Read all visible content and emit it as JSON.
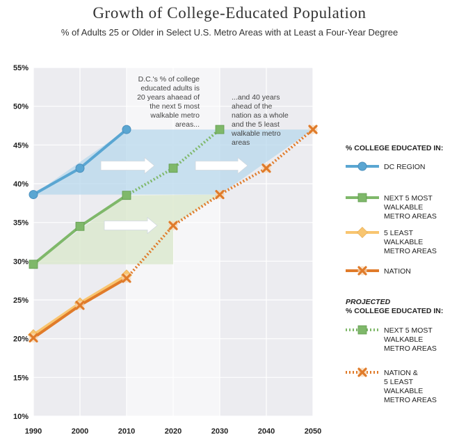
{
  "title": "Growth of College-Educated Population",
  "subtitle": "% of Adults 25 or Older in Select U.S. Metro Areas with at Least a Four-Year Degree",
  "chart_data": {
    "type": "line",
    "x": [
      1990,
      2000,
      2010,
      2020,
      2030,
      2040,
      2050
    ],
    "ylim": [
      10,
      55
    ],
    "yticks": [
      "55%",
      "50%",
      "45%",
      "40%",
      "35%",
      "30%",
      "25%",
      "20%",
      "15%",
      "10%"
    ],
    "xticks": [
      "1990",
      "2000",
      "2010",
      "2020",
      "2030",
      "2040",
      "2050"
    ],
    "series": [
      {
        "name": "DC REGION",
        "x": [
          1990,
          2000,
          2010
        ],
        "values": [
          38.6,
          42.0,
          47.0
        ],
        "color": "#5aa6d2",
        "marker": "circle",
        "projected": false
      },
      {
        "name": "NEXT 5 MOST WALKABLE METRO AREAS",
        "x": [
          1990,
          2000,
          2010
        ],
        "values": [
          29.6,
          34.5,
          38.5
        ],
        "color": "#7fb86a",
        "marker": "square",
        "projected": false
      },
      {
        "name": "5 LEAST WALKABLE METRO AREAS",
        "x": [
          1990,
          2000,
          2010
        ],
        "values": [
          20.5,
          24.6,
          28.2
        ],
        "color": "#f8c570",
        "marker": "diamond",
        "projected": false
      },
      {
        "name": "NATION",
        "x": [
          1990,
          2000,
          2010
        ],
        "values": [
          20.1,
          24.3,
          27.8
        ],
        "color": "#e07b2a",
        "marker": "x",
        "projected": false
      },
      {
        "name": "NEXT 5 MOST WALKABLE METRO AREAS",
        "x": [
          2010,
          2020,
          2030
        ],
        "values": [
          38.5,
          42.0,
          47.0
        ],
        "color": "#7fb86a",
        "marker": "square",
        "projected": true
      },
      {
        "name": "NATION & 5 LEAST WALKABLE METRO AREAS",
        "x": [
          2010,
          2020,
          2030,
          2040,
          2050
        ],
        "values": [
          27.8,
          34.6,
          38.6,
          42.0,
          47.0
        ],
        "color": "#e07b2a",
        "marker": "x",
        "projected": true
      }
    ],
    "annotations": [
      {
        "lines": [
          "D.C.'s % of college",
          "educated adults is",
          "20 years ahaead of",
          "the next 5 most",
          "walkable metro",
          "areas..."
        ]
      },
      {
        "lines": [
          "...and 40 years",
          "ahead of the",
          "nation as a whole",
          "and the 5 least",
          "walkable metro",
          "areas"
        ]
      }
    ],
    "legend": {
      "placement": "right",
      "heading": "% COLLEGE EDUCATED IN:",
      "projected_heading_1": "PROJECTED",
      "projected_heading_2": "% COLLEGE EDUCATED IN:",
      "entries": [
        {
          "lines": [
            "DC REGION"
          ],
          "color": "#5aa6d2",
          "marker": "circle",
          "dashed": false
        },
        {
          "lines": [
            "NEXT 5 MOST",
            "WALKABLE",
            "METRO AREAS"
          ],
          "color": "#7fb86a",
          "marker": "square",
          "dashed": false
        },
        {
          "lines": [
            "5 LEAST",
            "WALKABLE",
            "METRO AREAS"
          ],
          "color": "#f8c570",
          "marker": "diamond",
          "dashed": false
        },
        {
          "lines": [
            "NATION"
          ],
          "color": "#e07b2a",
          "marker": "x",
          "dashed": false
        }
      ],
      "projected_entries": [
        {
          "lines": [
            "NEXT 5 MOST",
            "WALKABLE",
            "METRO AREAS"
          ],
          "color": "#7fb86a",
          "marker": "square",
          "dashed": true
        },
        {
          "lines": [
            "NATION &",
            "5 LEAST",
            "WALKABLE",
            "METRO AREAS"
          ],
          "color": "#e07b2a",
          "marker": "x",
          "dashed": true
        }
      ]
    },
    "grid": true,
    "colors": {
      "bg_band": "#f0f0f3",
      "grid": "#ffffff",
      "blue_area": "#b8d8ec",
      "green_area": "#dbe9cd"
    }
  }
}
